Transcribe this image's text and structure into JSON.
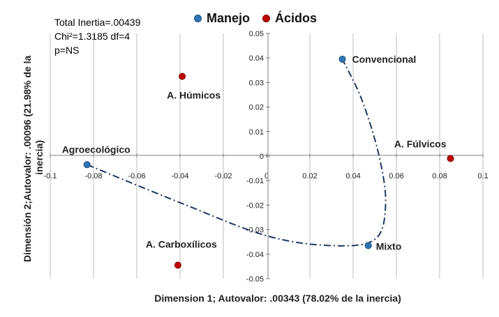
{
  "stats": {
    "line1": "Total Inertia=.00439",
    "line2": "Chi²=1.3185 df=4",
    "line3": "p=NS"
  },
  "chart_data": {
    "type": "scatter",
    "title": "",
    "xlabel": "Dimension 1; Autovalor: .00343 (78.02% de la inercia)",
    "ylabel": "Dimensión 2;Autovalor: .00096 (21.98% de la inercia)",
    "xlim": [
      -0.1,
      0.1
    ],
    "ylim": [
      -0.05,
      0.05
    ],
    "xticks": [
      -0.1,
      -0.08,
      -0.06,
      -0.04,
      -0.02,
      0,
      0.02,
      0.04,
      0.06,
      0.08,
      0.1
    ],
    "xtick_labels": [
      "-0.1",
      "-0.08",
      "-0.06",
      "-0.04",
      "-0.02",
      "0",
      "0.02",
      "0.04",
      "0.06",
      "0.08",
      "0.1"
    ],
    "yticks": [
      0.05,
      0.04,
      0.03,
      0.02,
      0.01,
      0,
      -0.01,
      -0.02,
      -0.03,
      -0.04,
      -0.05
    ],
    "ytick_labels": [
      "0.05",
      "0.04",
      "0.03",
      "0.02",
      "0.01",
      "0",
      "-0.01",
      "-0.02",
      "-0.03",
      "-0.04",
      "-0.05"
    ],
    "grid": "vertical",
    "legend_position": "top",
    "series": [
      {
        "name": "Manejo",
        "color": "#2e75b6",
        "points": [
          {
            "label": "Agroecológico",
            "x": -0.083,
            "y": -0.0035
          },
          {
            "label": "Convencional",
            "x": 0.035,
            "y": 0.0395
          },
          {
            "label": "Mixto",
            "x": 0.047,
            "y": -0.0365
          }
        ]
      },
      {
        "name": "Ácidos",
        "color": "#c00000",
        "points": [
          {
            "label": "A. Húmicos",
            "x": -0.039,
            "y": 0.0325
          },
          {
            "label": "A. Fúlvicos",
            "x": 0.085,
            "y": -0.001
          },
          {
            "label": "A. Carboxílicos",
            "x": -0.041,
            "y": -0.0445
          }
        ]
      }
    ],
    "annotation_curve": {
      "style": "dash-dot",
      "color": "#1f3864",
      "points": [
        [
          -0.083,
          -0.0035
        ],
        [
          -0.04,
          -0.019
        ],
        [
          0.0,
          -0.0325
        ],
        [
          0.03,
          -0.0365
        ],
        [
          0.05,
          -0.034
        ],
        [
          0.055,
          -0.02
        ],
        [
          0.052,
          0.0
        ],
        [
          0.044,
          0.023
        ],
        [
          0.035,
          0.0395
        ]
      ]
    }
  }
}
